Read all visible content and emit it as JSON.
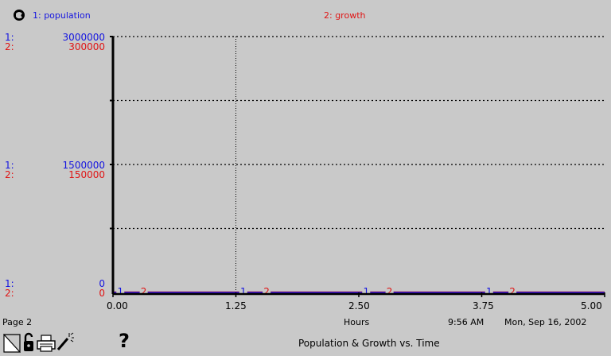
{
  "legend": {
    "series1": "1: population",
    "series2": "2: growth",
    "colors": {
      "series1": "#1414e0",
      "series2": "#e01414"
    }
  },
  "axis": {
    "y_prefix_1": "1:",
    "y_prefix_2": "2:",
    "xlabel": "Hours"
  },
  "footer": {
    "page_label": "Page 2",
    "time": "9:56 AM",
    "date": "Mon, Sep 16, 2002",
    "title": "Population & Growth vs. Time",
    "help_glyph": "?",
    "icons": [
      "page-turn-icon",
      "lock-icon",
      "print-icon",
      "magic-wand-icon",
      "help-icon"
    ]
  },
  "chart_data": {
    "type": "line",
    "title": "Population & Growth vs. Time",
    "xlabel": "Hours",
    "x_ticks": [
      "0.00",
      "1.25",
      "2.50",
      "3.75",
      "5.00"
    ],
    "xlim": [
      0,
      5
    ],
    "y_axes": [
      {
        "series": "population",
        "ylim": [
          0,
          3000000
        ],
        "tick_labels": [
          "3000000",
          "1500000",
          "0"
        ],
        "color": "#1414e0"
      },
      {
        "series": "growth",
        "ylim": [
          0,
          300000
        ],
        "tick_labels": [
          "300000",
          "150000",
          "0"
        ],
        "color": "#e01414"
      }
    ],
    "series": [
      {
        "name": "1: population",
        "marker": "1",
        "x": [
          0,
          5
        ],
        "values": [
          0,
          0
        ]
      },
      {
        "name": "2: growth",
        "marker": "2",
        "x": [
          0,
          5
        ],
        "values": [
          0,
          0
        ]
      }
    ],
    "grid": true
  }
}
